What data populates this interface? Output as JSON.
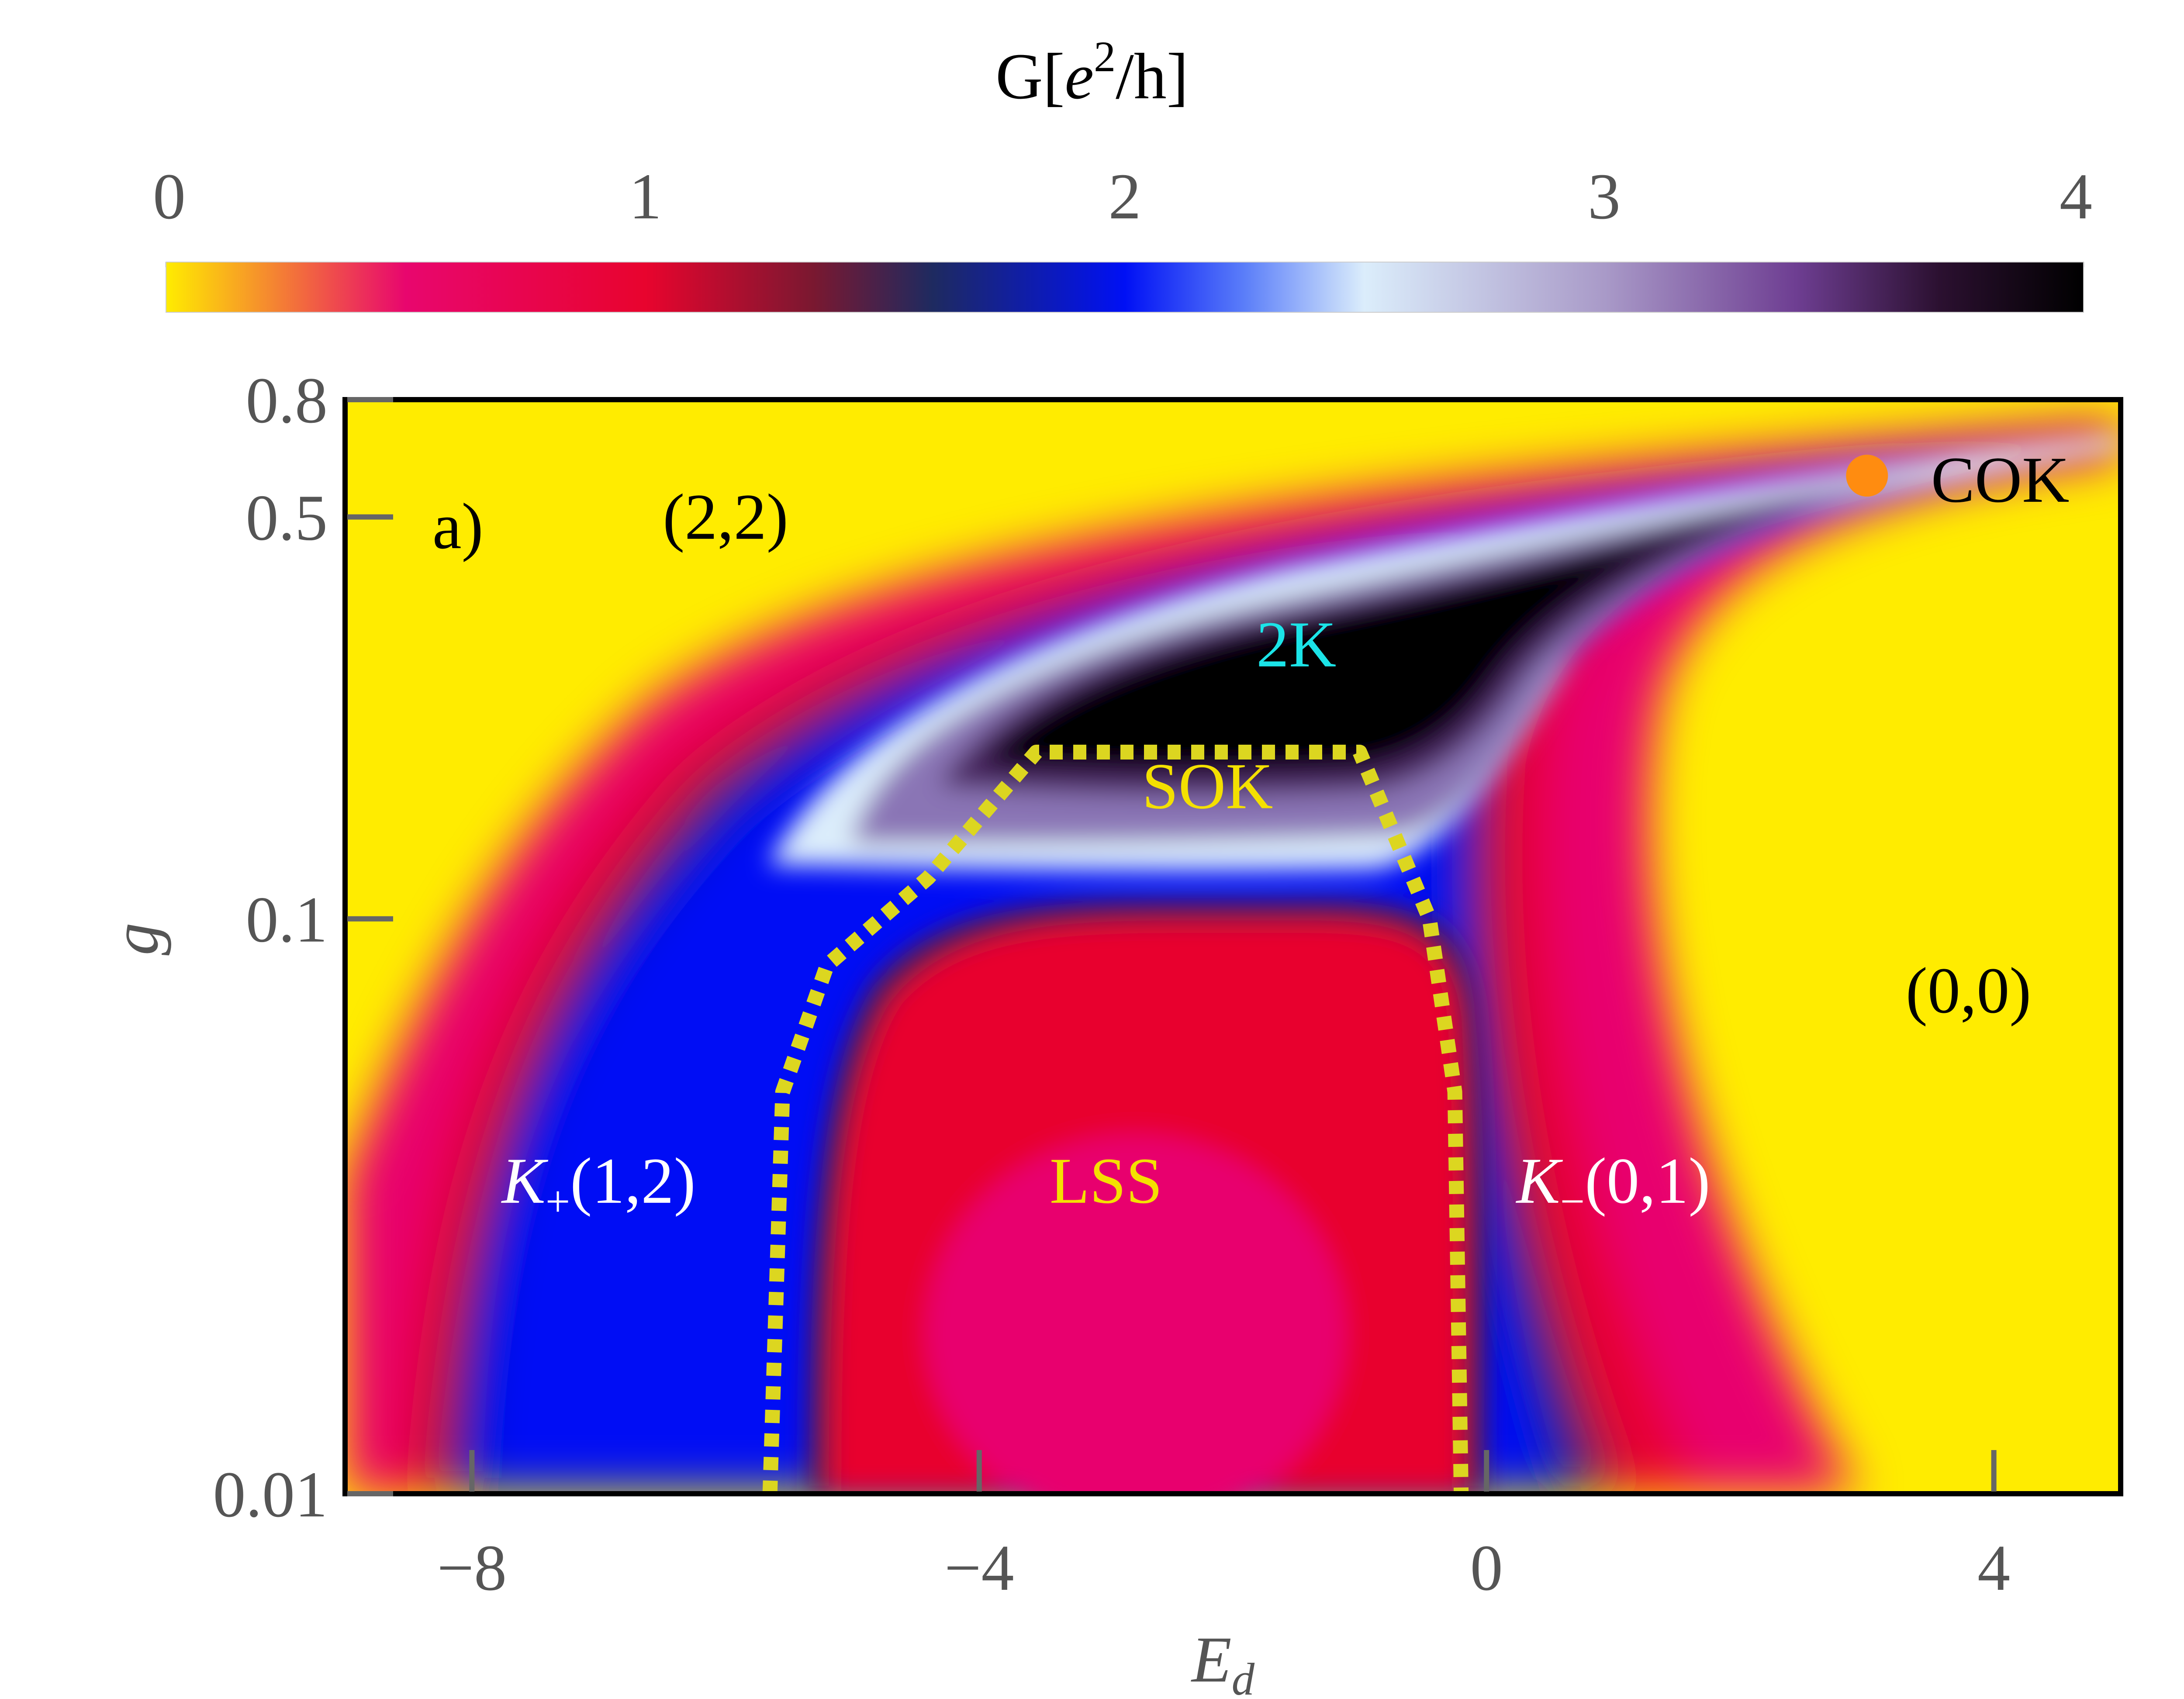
{
  "chart_data": {
    "type": "heatmap",
    "title": "",
    "xlabel": "E",
    "xlabel_sub": "d",
    "ylabel": "g",
    "xlim": [
      -9,
      5
    ],
    "ylim": [
      0.01,
      0.8
    ],
    "yscale": "log",
    "x_ticks": [
      {
        "value": -8,
        "label": "−8"
      },
      {
        "value": -4,
        "label": "−4"
      },
      {
        "value": 0,
        "label": "0"
      },
      {
        "value": 4,
        "label": "4"
      }
    ],
    "y_ticks": [
      {
        "value": 0.01,
        "label": "0.01"
      },
      {
        "value": 0.1,
        "label": "0.1"
      },
      {
        "value": 0.5,
        "label": "0.5"
      },
      {
        "value": 0.8,
        "label": "0.8"
      }
    ],
    "colorbar": {
      "title_prefix": "G[",
      "title_e": "e",
      "title_sup": "2",
      "title_suffix": "/h]",
      "range": [
        0,
        4
      ],
      "ticks": [
        {
          "value": 0,
          "label": "0"
        },
        {
          "value": 1,
          "label": "1"
        },
        {
          "value": 2,
          "label": "2"
        },
        {
          "value": 3,
          "label": "3"
        },
        {
          "value": 4,
          "label": "4"
        }
      ],
      "stops": [
        {
          "value": 0.0,
          "color": "#ffec00"
        },
        {
          "value": 0.5,
          "color": "#e8066e"
        },
        {
          "value": 1.0,
          "color": "#e8042e"
        },
        {
          "value": 1.35,
          "color": "#7a1830"
        },
        {
          "value": 1.6,
          "color": "#1e2a60"
        },
        {
          "value": 2.0,
          "color": "#0010f5"
        },
        {
          "value": 2.25,
          "color": "#5b7ef9"
        },
        {
          "value": 2.5,
          "color": "#dbedfb"
        },
        {
          "value": 3.0,
          "color": "#a99ac8"
        },
        {
          "value": 3.4,
          "color": "#6e3e92"
        },
        {
          "value": 3.7,
          "color": "#2b1030"
        },
        {
          "value": 4.0,
          "color": "#000000"
        }
      ]
    },
    "panel_label": "a)",
    "regions": [
      {
        "text": "(2,2)",
        "x": -6.0,
        "g": 0.5,
        "color": "#000000"
      },
      {
        "text": "2K",
        "x": -1.5,
        "g": 0.3,
        "color": "#1be4e8"
      },
      {
        "text": "SOK",
        "x": -2.2,
        "g": 0.17,
        "color": "#f4e000"
      },
      {
        "text": "LSS",
        "x": -3.0,
        "g": 0.035,
        "color": "#f4e000"
      },
      {
        "text": "(0,0)",
        "x": 3.8,
        "g": 0.075,
        "color": "#000000"
      },
      {
        "text": "COK",
        "x": 4.05,
        "g": 0.58,
        "color": "#000000"
      }
    ],
    "kondo_labels": [
      {
        "symbol": "K",
        "sub": "+",
        "text": "(1,2)",
        "x": -7.0,
        "g": 0.035,
        "color": "#ffffff"
      },
      {
        "symbol": "K",
        "sub": "−",
        "text": "(0,1)",
        "x": 1.0,
        "g": 0.035,
        "color": "#ffffff"
      }
    ],
    "cok_point": {
      "x": 3.0,
      "g": 0.59,
      "color": "#ff8c10"
    },
    "lss_boundary": {
      "color": "#dcd620",
      "points": [
        [
          -5.65,
          0.01
        ],
        [
          -5.55,
          0.05
        ],
        [
          -5.2,
          0.083
        ],
        [
          -4.4,
          0.118
        ],
        [
          -3.55,
          0.195
        ],
        [
          -1.0,
          0.195
        ],
        [
          -0.45,
          0.1
        ],
        [
          -0.25,
          0.05
        ],
        [
          -0.2,
          0.01
        ]
      ]
    }
  }
}
